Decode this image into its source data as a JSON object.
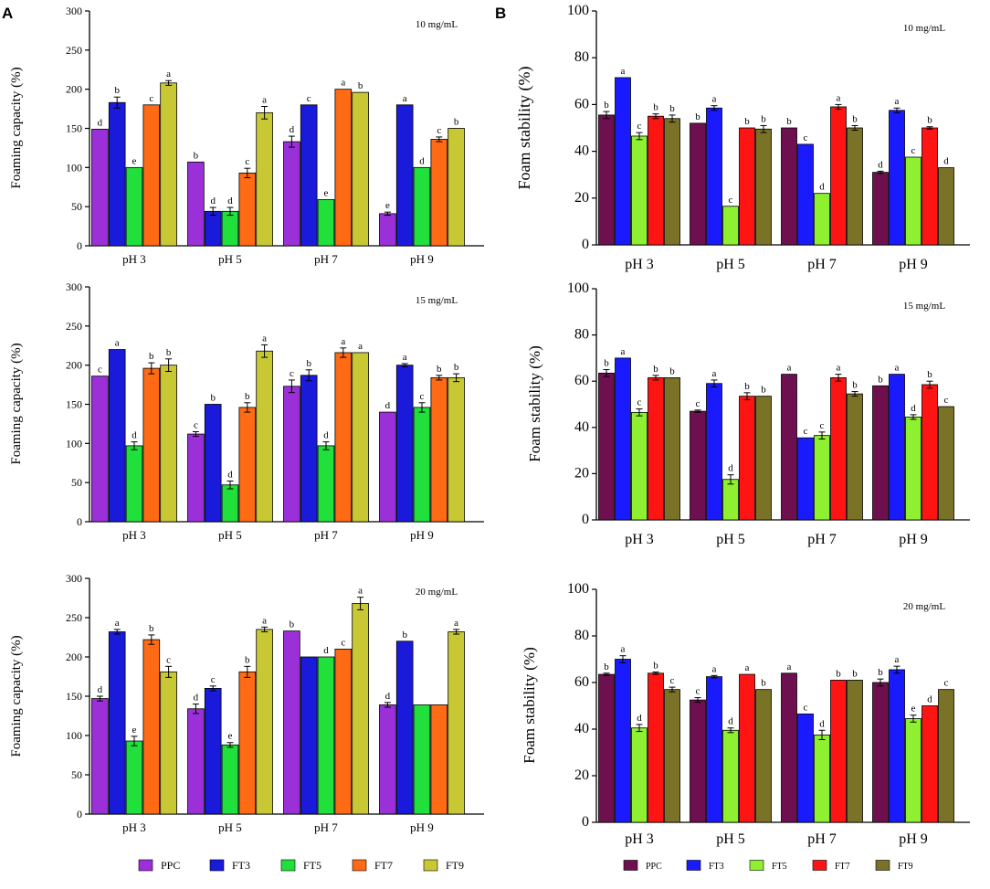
{
  "panel_labels": {
    "A": "A",
    "B": "B"
  },
  "colors": {
    "A": {
      "PPC": "#9b30d9",
      "FT3": "#1a1adb",
      "FT5": "#22e03c",
      "FT7": "#ff6a14",
      "FT9": "#c8c834"
    },
    "B": {
      "PPC": "#6e1050",
      "FT3": "#1a1aff",
      "FT5": "#8ef030",
      "FT7": "#ff1414",
      "FT9": "#7a7226"
    }
  },
  "legend": {
    "A": [
      "PPC",
      "FT3",
      "FT5",
      "FT7",
      "FT9"
    ],
    "B": [
      "PPC",
      "FT3",
      "FT5",
      "FT7",
      "FT9"
    ]
  },
  "chart_data": [
    {
      "type": "bar",
      "panel": "A",
      "annotation": "10 mg/mL",
      "ylabel": "Foaming capacity (%)",
      "xlabel": "",
      "ylim": [
        0,
        300
      ],
      "yticks": [
        0,
        50,
        100,
        150,
        200,
        250,
        300
      ],
      "categories": [
        "pH 3",
        "pH 5",
        "pH 7",
        "pH 9"
      ],
      "series": [
        {
          "name": "PPC",
          "values": [
            149,
            107,
            133,
            41
          ],
          "errors": [
            0,
            0,
            7,
            2
          ],
          "letters": [
            "d",
            "b",
            "d",
            "e"
          ]
        },
        {
          "name": "FT3",
          "values": [
            183,
            44,
            180,
            180
          ],
          "errors": [
            7,
            5,
            0,
            0
          ],
          "letters": [
            "b",
            "d",
            "c",
            "a"
          ]
        },
        {
          "name": "FT5",
          "values": [
            100,
            44,
            59,
            100
          ],
          "errors": [
            0,
            5,
            0,
            0
          ],
          "letters": [
            "e",
            "d",
            "e",
            "d"
          ]
        },
        {
          "name": "FT7",
          "values": [
            180,
            93,
            200,
            136
          ],
          "errors": [
            0,
            6,
            0,
            3
          ],
          "letters": [
            "c",
            "c",
            "a",
            "c"
          ]
        },
        {
          "name": "FT9",
          "values": [
            208,
            170,
            196,
            150
          ],
          "errors": [
            3,
            8,
            0,
            0
          ],
          "letters": [
            "a",
            "a",
            "b",
            "b"
          ]
        }
      ]
    },
    {
      "type": "bar",
      "panel": "A",
      "annotation": "15 mg/mL",
      "ylabel": "Foaming capacity (%)",
      "xlabel": "",
      "ylim": [
        0,
        300
      ],
      "yticks": [
        0,
        50,
        100,
        150,
        200,
        250,
        300
      ],
      "categories": [
        "pH 3",
        "pH 5",
        "pH 7",
        "pH 9"
      ],
      "series": [
        {
          "name": "PPC",
          "values": [
            186,
            112,
            173,
            140
          ],
          "errors": [
            0,
            3,
            8,
            0
          ],
          "letters": [
            "c",
            "c",
            "c",
            "d"
          ]
        },
        {
          "name": "FT3",
          "values": [
            220,
            150,
            187,
            200
          ],
          "errors": [
            0,
            0,
            7,
            2
          ],
          "letters": [
            "a",
            "b",
            "b",
            "a"
          ]
        },
        {
          "name": "FT5",
          "values": [
            97,
            47,
            97,
            146
          ],
          "errors": [
            5,
            5,
            5,
            6
          ],
          "letters": [
            "d",
            "d",
            "d",
            "c"
          ]
        },
        {
          "name": "FT7",
          "values": [
            196,
            146,
            216,
            184
          ],
          "errors": [
            7,
            6,
            6,
            3
          ],
          "letters": [
            "b",
            "b",
            "a",
            "b"
          ]
        },
        {
          "name": "FT9",
          "values": [
            200,
            218,
            216,
            184
          ],
          "errors": [
            8,
            8,
            0,
            5
          ],
          "letters": [
            "b",
            "a",
            "a",
            "b"
          ]
        }
      ]
    },
    {
      "type": "bar",
      "panel": "A",
      "annotation": "20 mg/mL",
      "ylabel": "Foaming capacity (%)",
      "xlabel": "",
      "ylim": [
        0,
        300
      ],
      "yticks": [
        0,
        50,
        100,
        150,
        200,
        250,
        300
      ],
      "categories": [
        "pH 3",
        "pH 5",
        "pH 7",
        "pH 9"
      ],
      "series": [
        {
          "name": "PPC",
          "values": [
            147,
            134,
            233,
            139
          ],
          "errors": [
            3,
            6,
            0,
            3
          ],
          "letters": [
            "d",
            "d",
            "b",
            "d"
          ]
        },
        {
          "name": "FT3",
          "values": [
            232,
            160,
            200,
            220
          ],
          "errors": [
            3,
            3,
            0,
            0
          ],
          "letters": [
            "a",
            "c",
            "",
            "b"
          ]
        },
        {
          "name": "FT5",
          "values": [
            93,
            88,
            200,
            139
          ],
          "errors": [
            6,
            3,
            0,
            0
          ],
          "letters": [
            "e",
            "e",
            "d",
            ""
          ]
        },
        {
          "name": "FT7",
          "values": [
            222,
            181,
            210,
            139
          ],
          "errors": [
            6,
            7,
            0,
            0
          ],
          "letters": [
            "b",
            "b",
            "c",
            ""
          ]
        },
        {
          "name": "FT9",
          "values": [
            181,
            235,
            268,
            232
          ],
          "errors": [
            7,
            3,
            8,
            3
          ],
          "letters": [
            "c",
            "a",
            "a",
            "a"
          ]
        }
      ]
    },
    {
      "type": "bar",
      "panel": "B",
      "annotation": "10 mg/mL",
      "ylabel": "Foam stability (%)",
      "xlabel": "",
      "ylim": [
        0,
        100
      ],
      "yticks": [
        0,
        20,
        40,
        60,
        80,
        100
      ],
      "categories": [
        "pH 3",
        "pH 5",
        "pH 7",
        "pH 9"
      ],
      "series": [
        {
          "name": "PPC",
          "values": [
            55.5,
            52,
            50,
            31
          ],
          "errors": [
            1.5,
            0,
            0,
            0.5
          ],
          "letters": [
            "b",
            "b",
            "b",
            "d"
          ]
        },
        {
          "name": "FT3",
          "values": [
            71.5,
            58.5,
            43,
            57.5
          ],
          "errors": [
            0,
            1,
            0,
            1
          ],
          "letters": [
            "a",
            "a",
            "c",
            "a"
          ]
        },
        {
          "name": "FT5",
          "values": [
            46.5,
            16.5,
            22,
            37.5
          ],
          "errors": [
            1.5,
            0,
            0,
            0
          ],
          "letters": [
            "c",
            "c",
            "d",
            "c"
          ]
        },
        {
          "name": "FT7",
          "values": [
            55,
            50,
            59,
            50
          ],
          "errors": [
            1,
            0,
            1,
            0.5
          ],
          "letters": [
            "b",
            "b",
            "a",
            "b"
          ]
        },
        {
          "name": "FT9",
          "values": [
            54,
            49.5,
            50,
            33
          ],
          "errors": [
            1.5,
            1.5,
            1,
            0
          ],
          "letters": [
            "b",
            "b",
            "b",
            "d"
          ]
        }
      ]
    },
    {
      "type": "bar",
      "panel": "B",
      "annotation": "15 mg/mL",
      "ylabel": "Foam stability (%)",
      "xlabel": "",
      "ylim": [
        0,
        100
      ],
      "yticks": [
        0,
        20,
        40,
        60,
        80,
        100
      ],
      "categories": [
        "pH 3",
        "pH 5",
        "pH 7",
        "pH 9"
      ],
      "series": [
        {
          "name": "PPC",
          "values": [
            63.5,
            47,
            63,
            58
          ],
          "errors": [
            1.5,
            0.5,
            0,
            0
          ],
          "letters": [
            "b",
            "c",
            "a",
            "b"
          ]
        },
        {
          "name": "FT3",
          "values": [
            70,
            59,
            35.5,
            63
          ],
          "errors": [
            0,
            1.5,
            0,
            0
          ],
          "letters": [
            "a",
            "a",
            "c",
            "a"
          ]
        },
        {
          "name": "FT5",
          "values": [
            46.5,
            17.5,
            36.5,
            44.5
          ],
          "errors": [
            1.5,
            2,
            1.5,
            1
          ],
          "letters": [
            "c",
            "d",
            "c",
            "d"
          ]
        },
        {
          "name": "FT7",
          "values": [
            61.5,
            53.5,
            61.5,
            58.5
          ],
          "errors": [
            1,
            1.5,
            1.5,
            1.5
          ],
          "letters": [
            "b",
            "b",
            "a",
            "b"
          ]
        },
        {
          "name": "FT9",
          "values": [
            61.5,
            53.5,
            54.5,
            49
          ],
          "errors": [
            0,
            0,
            1,
            0
          ],
          "letters": [
            "b",
            "b",
            "b",
            "c"
          ]
        }
      ]
    },
    {
      "type": "bar",
      "panel": "B",
      "annotation": "20 mg/mL",
      "ylabel": "Foam stability (%)",
      "xlabel": "",
      "ylim": [
        0,
        100
      ],
      "yticks": [
        0,
        20,
        40,
        60,
        80,
        100
      ],
      "categories": [
        "pH 3",
        "pH 5",
        "pH 7",
        "pH 9"
      ],
      "series": [
        {
          "name": "PPC",
          "values": [
            63.5,
            52.5,
            64,
            60
          ],
          "errors": [
            0.5,
            1,
            0,
            1.5
          ],
          "letters": [
            "b",
            "c",
            "a",
            "b"
          ]
        },
        {
          "name": "FT3",
          "values": [
            70,
            62.5,
            46.5,
            65.5
          ],
          "errors": [
            1.5,
            0.5,
            0,
            1.5
          ],
          "letters": [
            "a",
            "a",
            "c",
            "a"
          ]
        },
        {
          "name": "FT5",
          "values": [
            40.5,
            39.5,
            37.5,
            44.5
          ],
          "errors": [
            1.5,
            1,
            2,
            1.5
          ],
          "letters": [
            "d",
            "d",
            "d",
            "e"
          ]
        },
        {
          "name": "FT7",
          "values": [
            64,
            63.5,
            61,
            50
          ],
          "errors": [
            0.5,
            0,
            0,
            0
          ],
          "letters": [
            "b",
            "a",
            "b",
            "d"
          ]
        },
        {
          "name": "FT9",
          "values": [
            57,
            57,
            61,
            57
          ],
          "errors": [
            1,
            0,
            0,
            0
          ],
          "letters": [
            "c",
            "b",
            "b",
            "c"
          ]
        }
      ]
    }
  ]
}
